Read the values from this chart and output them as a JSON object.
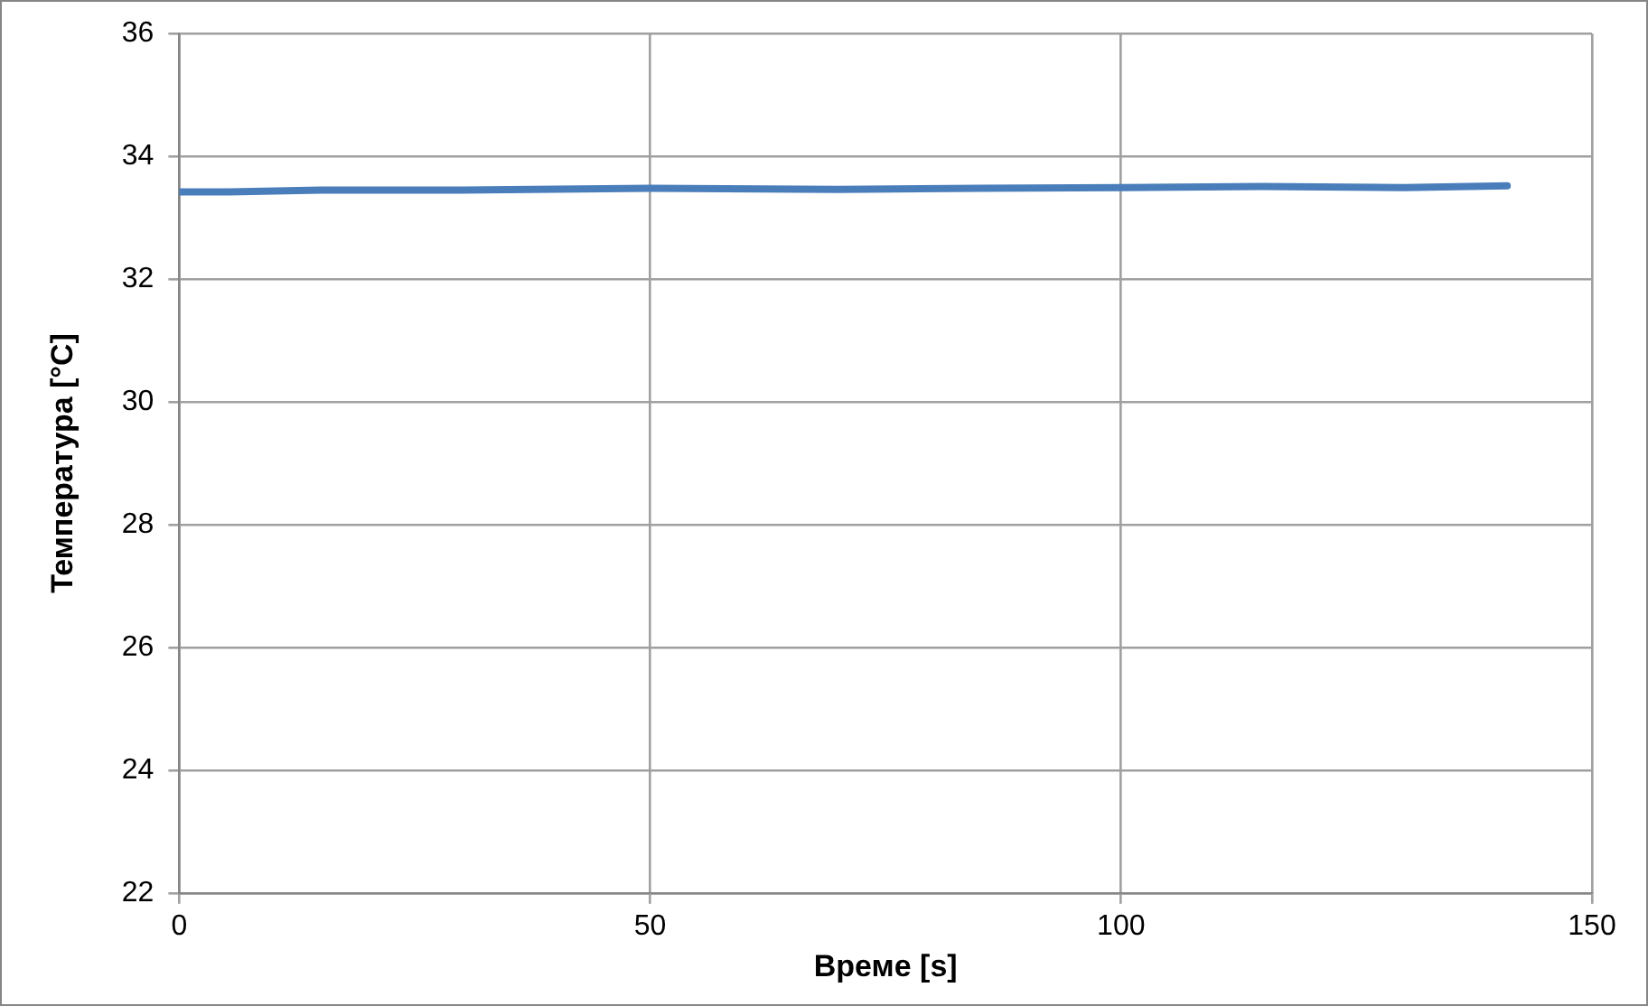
{
  "chart_data": {
    "type": "line",
    "xlabel": "Време [s]",
    "ylabel": "Температура [°C]",
    "x": [
      0,
      5,
      15,
      30,
      50,
      70,
      85,
      100,
      115,
      130,
      141
    ],
    "series": [
      {
        "color": "#4a7ebb",
        "values": [
          33.42,
          33.42,
          33.45,
          33.45,
          33.48,
          33.46,
          33.48,
          33.49,
          33.51,
          33.49,
          33.52
        ]
      }
    ],
    "xlim": [
      0,
      150
    ],
    "xticks": [
      0,
      50,
      100,
      150
    ],
    "ylim": [
      22,
      36
    ],
    "yticks": [
      22,
      24,
      26,
      28,
      30,
      32,
      34,
      36
    ],
    "grid": true,
    "legend": false,
    "marker": "none",
    "line_style": "solid"
  }
}
